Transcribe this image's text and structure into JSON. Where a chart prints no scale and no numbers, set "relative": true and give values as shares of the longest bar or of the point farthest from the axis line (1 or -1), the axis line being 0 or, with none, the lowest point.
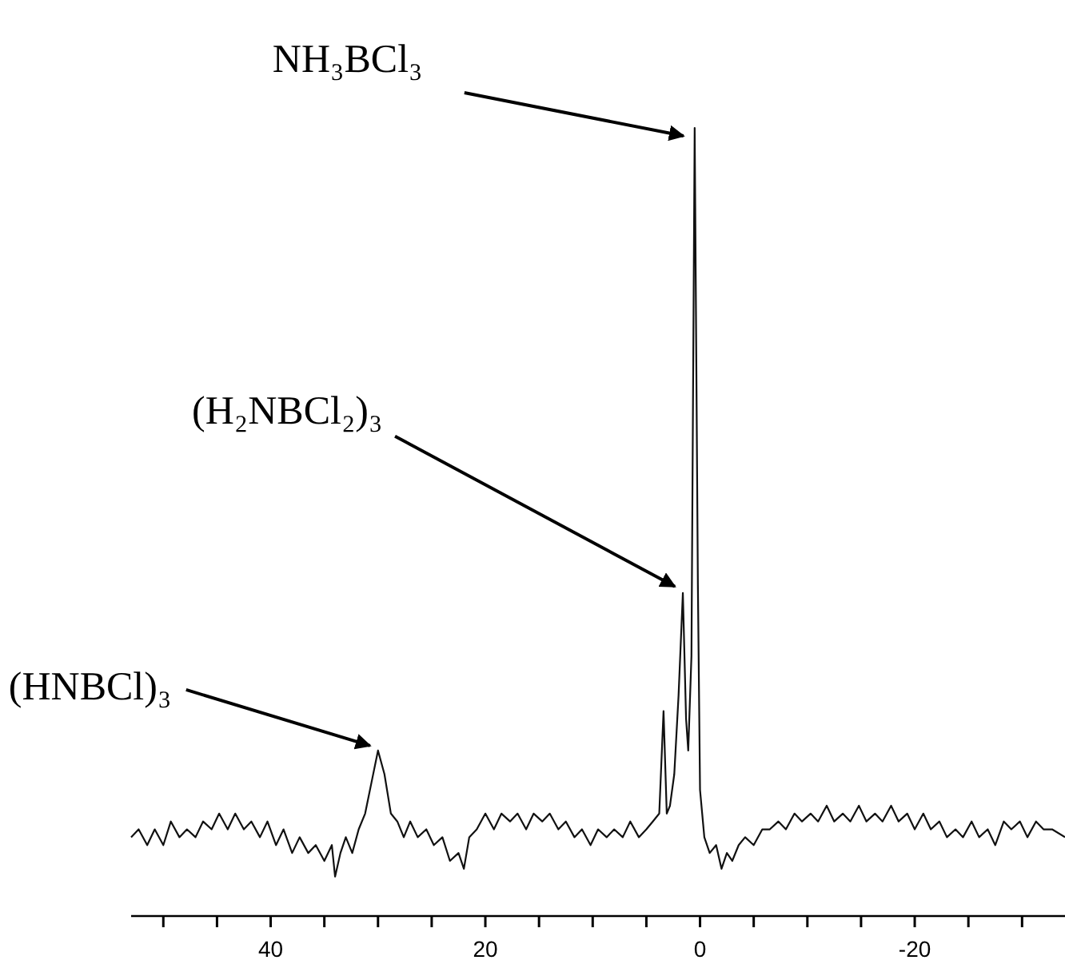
{
  "chart_data": {
    "type": "line",
    "relative": true,
    "xlim": [
      53,
      -34
    ],
    "xticks": [
      {
        "value": 50,
        "label": null
      },
      {
        "value": 45,
        "label": null
      },
      40,
      {
        "value": 35,
        "label": null
      },
      {
        "value": 30,
        "label": null
      },
      {
        "value": 25,
        "label": null
      },
      20,
      {
        "value": 15,
        "label": null
      },
      {
        "value": 10,
        "label": null
      },
      {
        "value": 5,
        "label": null
      },
      0,
      {
        "value": -5,
        "label": null
      },
      {
        "value": -10,
        "label": null
      },
      {
        "value": -15,
        "label": null
      },
      -20,
      {
        "value": -25,
        "label": null
      },
      {
        "value": -30,
        "label": null
      }
    ],
    "tick_labels": "x",
    "series": [
      {
        "color": "#111111",
        "x": [
          53,
          52.3,
          51.5,
          50.8,
          50,
          49.3,
          48.5,
          47.8,
          47,
          46.3,
          45.5,
          44.8,
          44,
          43.3,
          42.5,
          41.8,
          41,
          40.3,
          39.5,
          38.8,
          38,
          37.3,
          36.5,
          35.8,
          35,
          34.3,
          34,
          33.5,
          33,
          32.4,
          31.8,
          31.2,
          30.6,
          30,
          29.4,
          28.8,
          28.2,
          27.6,
          27,
          26.3,
          25.5,
          24.8,
          24,
          23.3,
          22.5,
          22,
          21.5,
          20.8,
          20,
          19.2,
          18.5,
          17.7,
          17,
          16.2,
          15.5,
          14.7,
          14,
          13.2,
          12.5,
          11.7,
          11,
          10.2,
          9.5,
          8.7,
          8,
          7.2,
          6.5,
          5.7,
          5,
          4.4,
          3.8,
          3.4,
          3.1,
          2.8,
          2.4,
          2,
          1.6,
          1.3,
          1.1,
          0.8,
          0.5,
          0.2,
          0,
          -0.4,
          -0.9,
          -1.5,
          -2,
          -2.5,
          -3,
          -3.6,
          -4.2,
          -5,
          -5.8,
          -6.5,
          -7.3,
          -8,
          -8.8,
          -9.5,
          -10.3,
          -11,
          -11.8,
          -12.5,
          -13.3,
          -14,
          -14.8,
          -15.5,
          -16.3,
          -17,
          -17.8,
          -18.5,
          -19.3,
          -20,
          -20.8,
          -21.5,
          -22.3,
          -23,
          -23.8,
          -24.5,
          -25.3,
          -26,
          -26.8,
          -27.5,
          -28.3,
          -29,
          -29.8,
          -30.5,
          -31.3,
          -32,
          -32.8,
          -34
        ],
        "values": [
          0.1,
          0.11,
          0.09,
          0.11,
          0.09,
          0.12,
          0.1,
          0.11,
          0.1,
          0.12,
          0.11,
          0.13,
          0.11,
          0.13,
          0.11,
          0.12,
          0.1,
          0.12,
          0.09,
          0.11,
          0.08,
          0.1,
          0.08,
          0.09,
          0.07,
          0.09,
          0.05,
          0.08,
          0.1,
          0.08,
          0.11,
          0.13,
          0.17,
          0.21,
          0.18,
          0.13,
          0.12,
          0.1,
          0.12,
          0.1,
          0.11,
          0.09,
          0.1,
          0.07,
          0.08,
          0.06,
          0.1,
          0.11,
          0.13,
          0.11,
          0.13,
          0.12,
          0.13,
          0.11,
          0.13,
          0.12,
          0.13,
          0.11,
          0.12,
          0.1,
          0.11,
          0.09,
          0.11,
          0.1,
          0.11,
          0.1,
          0.12,
          0.1,
          0.11,
          0.12,
          0.13,
          0.26,
          0.13,
          0.14,
          0.18,
          0.28,
          0.41,
          0.25,
          0.21,
          0.33,
          1,
          0.42,
          0.16,
          0.1,
          0.08,
          0.09,
          0.06,
          0.08,
          0.07,
          0.09,
          0.1,
          0.09,
          0.11,
          0.11,
          0.12,
          0.11,
          0.13,
          0.12,
          0.13,
          0.12,
          0.14,
          0.12,
          0.13,
          0.12,
          0.14,
          0.12,
          0.13,
          0.12,
          0.14,
          0.12,
          0.13,
          0.11,
          0.13,
          0.11,
          0.12,
          0.1,
          0.11,
          0.1,
          0.12,
          0.1,
          0.11,
          0.09,
          0.12,
          0.11,
          0.12,
          0.1,
          0.12,
          0.11,
          0.11,
          0.1
        ]
      }
    ],
    "annotations": [
      {
        "text": "NH₃BCl₃",
        "x": 0.5,
        "y": 1
      },
      {
        "text": "(H₂NBCl₂)₃",
        "x": 1.6,
        "y": 0.41
      },
      {
        "text": "(HNBCl)₃",
        "x": 30,
        "y": 0.21
      }
    ]
  }
}
